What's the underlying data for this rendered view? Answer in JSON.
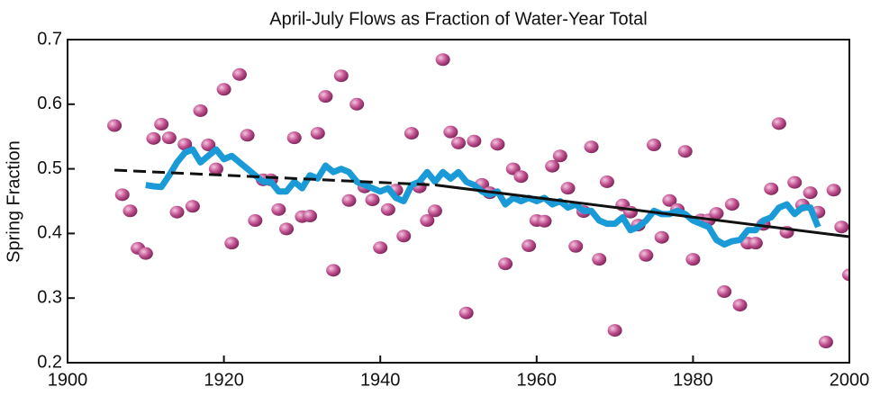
{
  "chart_data": {
    "type": "scatter",
    "title": "April-July Flows as Fraction of Water-Year Total",
    "ylabel": "Spring Fraction",
    "xlim": [
      1900,
      2000
    ],
    "ylim": [
      0.2,
      0.7
    ],
    "xticks": [
      1900,
      1920,
      1940,
      1960,
      1980,
      2000
    ],
    "yticks": [
      0.2,
      0.3,
      0.4,
      0.5,
      0.6,
      0.7
    ],
    "series": [
      {
        "type": "scatter",
        "color": "#b5468a",
        "x": [
          1906,
          1907,
          1908,
          1909,
          1910,
          1911,
          1912,
          1913,
          1914,
          1915,
          1916,
          1917,
          1918,
          1919,
          1920,
          1921,
          1922,
          1923,
          1924,
          1925,
          1926,
          1927,
          1928,
          1929,
          1930,
          1931,
          1932,
          1933,
          1934,
          1935,
          1936,
          1937,
          1938,
          1939,
          1940,
          1941,
          1942,
          1943,
          1944,
          1945,
          1946,
          1947,
          1948,
          1949,
          1950,
          1951,
          1952,
          1953,
          1954,
          1955,
          1956,
          1957,
          1958,
          1959,
          1960,
          1961,
          1962,
          1963,
          1964,
          1965,
          1966,
          1967,
          1968,
          1969,
          1970,
          1971,
          1972,
          1973,
          1974,
          1975,
          1976,
          1977,
          1978,
          1979,
          1980,
          1981,
          1982,
          1983,
          1984,
          1985,
          1986,
          1987,
          1988,
          1989,
          1990,
          1991,
          1992,
          1993,
          1994,
          1995,
          1996,
          1997,
          1998,
          1999,
          2000
        ],
        "values": [
          0.567,
          0.46,
          0.435,
          0.377,
          0.369,
          0.547,
          0.569,
          0.548,
          0.433,
          0.538,
          0.442,
          0.59,
          0.537,
          0.5,
          0.623,
          0.385,
          0.646,
          0.552,
          0.42,
          0.483,
          0.483,
          0.437,
          0.407,
          0.548,
          0.426,
          0.427,
          0.555,
          0.612,
          0.343,
          0.644,
          0.451,
          0.6,
          0.472,
          0.452,
          0.378,
          0.437,
          0.467,
          0.396,
          0.555,
          0.472,
          0.42,
          0.435,
          0.669,
          0.557,
          0.54,
          0.277,
          0.543,
          0.476,
          0.463,
          0.538,
          0.353,
          0.5,
          0.488,
          0.381,
          0.42,
          0.419,
          0.504,
          0.52,
          0.47,
          0.38,
          0.434,
          0.534,
          0.36,
          0.48,
          0.25,
          0.444,
          0.433,
          0.413,
          0.366,
          0.537,
          0.394,
          0.451,
          0.437,
          0.527,
          0.36,
          0.421,
          0.421,
          0.431,
          0.31,
          0.445,
          0.289,
          0.385,
          0.385,
          0.414,
          0.469,
          0.57,
          0.402,
          0.479,
          0.444,
          0.463,
          0.433,
          0.232,
          0.467,
          0.41,
          0.336
        ]
      },
      {
        "type": "line",
        "color": "#1a9bd7",
        "width": 7,
        "dash": "solid",
        "x": [
          1910,
          1911,
          1912,
          1913,
          1914,
          1915,
          1916,
          1917,
          1918,
          1919,
          1920,
          1921,
          1922,
          1923,
          1924,
          1925,
          1926,
          1927,
          1928,
          1929,
          1930,
          1931,
          1932,
          1933,
          1934,
          1935,
          1936,
          1937,
          1938,
          1939,
          1940,
          1941,
          1942,
          1943,
          1944,
          1945,
          1946,
          1947,
          1948,
          1949,
          1950,
          1951,
          1952,
          1953,
          1954,
          1955,
          1956,
          1957,
          1958,
          1959,
          1960,
          1961,
          1962,
          1963,
          1964,
          1965,
          1966,
          1967,
          1968,
          1969,
          1970,
          1971,
          1972,
          1973,
          1974,
          1975,
          1976,
          1977,
          1978,
          1979,
          1980,
          1981,
          1982,
          1983,
          1984,
          1985,
          1986,
          1987,
          1988,
          1989,
          1990,
          1991,
          1992,
          1993,
          1994,
          1995,
          1996
        ],
        "values": [
          0.475,
          0.473,
          0.472,
          0.49,
          0.51,
          0.525,
          0.53,
          0.51,
          0.52,
          0.53,
          0.515,
          0.52,
          0.51,
          0.5,
          0.49,
          0.48,
          0.48,
          0.465,
          0.465,
          0.48,
          0.47,
          0.49,
          0.485,
          0.505,
          0.495,
          0.5,
          0.495,
          0.48,
          0.475,
          0.47,
          0.465,
          0.47,
          0.455,
          0.45,
          0.475,
          0.48,
          0.495,
          0.48,
          0.495,
          0.485,
          0.495,
          0.48,
          0.475,
          0.465,
          0.46,
          0.465,
          0.445,
          0.455,
          0.45,
          0.455,
          0.45,
          0.455,
          0.445,
          0.45,
          0.44,
          0.445,
          0.435,
          0.435,
          0.42,
          0.415,
          0.415,
          0.425,
          0.405,
          0.41,
          0.42,
          0.435,
          0.43,
          0.43,
          0.435,
          0.43,
          0.42,
          0.415,
          0.41,
          0.39,
          0.383,
          0.388,
          0.39,
          0.405,
          0.405,
          0.42,
          0.425,
          0.44,
          0.445,
          0.43,
          0.44,
          0.44,
          0.41
        ]
      },
      {
        "type": "line",
        "color": "#111111",
        "width": 3,
        "dash": "dashed",
        "x": [
          1906,
          1947
        ],
        "values": [
          0.498,
          0.475
        ]
      },
      {
        "type": "line",
        "color": "#111111",
        "width": 3,
        "dash": "solid",
        "x": [
          1947,
          2000
        ],
        "values": [
          0.475,
          0.395
        ]
      }
    ]
  }
}
